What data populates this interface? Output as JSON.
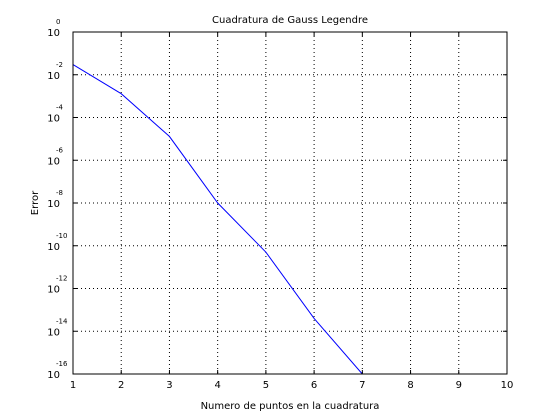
{
  "chart_data": {
    "type": "line",
    "title": "Cuadratura de Gauss Legendre",
    "xlabel": "Numero de puntos en la cuadratura",
    "ylabel": "Error",
    "xlim": [
      1,
      10
    ],
    "ylim": [
      1e-16,
      1
    ],
    "yscale": "log",
    "grid": true,
    "x_ticks": [
      "1",
      "2",
      "3",
      "4",
      "5",
      "6",
      "7",
      "8",
      "9",
      "10"
    ],
    "y_ticks": [
      {
        "base": "10",
        "exp": "0"
      },
      {
        "base": "10",
        "exp": "-2"
      },
      {
        "base": "10",
        "exp": "-4"
      },
      {
        "base": "10",
        "exp": "-6"
      },
      {
        "base": "10",
        "exp": "-8"
      },
      {
        "base": "10",
        "exp": "-10"
      },
      {
        "base": "10",
        "exp": "-12"
      },
      {
        "base": "10",
        "exp": "-14"
      },
      {
        "base": "10",
        "exp": "-16"
      }
    ],
    "series": [
      {
        "color": "#0000ff",
        "x": [
          1,
          2,
          3,
          4,
          5,
          6,
          7,
          8
        ],
        "y": [
          0.03,
          0.0013,
          1.3e-05,
          1e-08,
          5e-11,
          4e-14,
          1e-16,
          1e-16
        ]
      }
    ]
  }
}
